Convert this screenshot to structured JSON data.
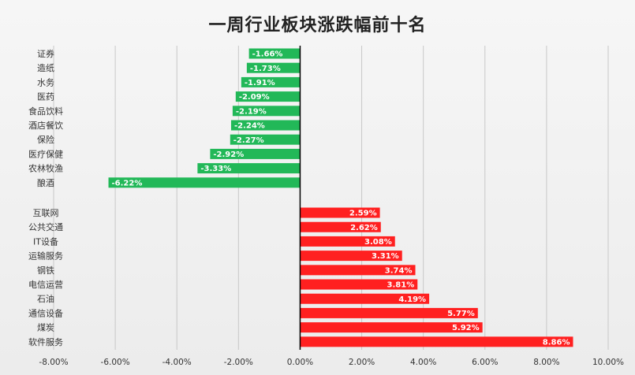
{
  "chart_data": {
    "type": "bar",
    "orientation": "horizontal",
    "title": "一周行业板块涨跌幅前十名",
    "xlim": [
      -8,
      10
    ],
    "x_ticks": [
      "-8.00%",
      "-6.00%",
      "-4.00%",
      "-2.00%",
      "0.00%",
      "2.00%",
      "4.00%",
      "6.00%",
      "8.00%",
      "10.00%"
    ],
    "grid": "vertical",
    "colors": {
      "negative": "#22b858",
      "positive": "#ff2020"
    },
    "groups": [
      {
        "categories": [
          "证券",
          "造纸",
          "水务",
          "医药",
          "食品饮料",
          "酒店餐饮",
          "保险",
          "医疗保健",
          "农林牧渔",
          "酿酒"
        ],
        "values": [
          -1.66,
          -1.73,
          -1.91,
          -2.09,
          -2.19,
          -2.24,
          -2.27,
          -2.92,
          -3.33,
          -6.22
        ],
        "labels": [
          "-1.66%",
          "-1.73%",
          "-1.91%",
          "-2.09%",
          "-2.19%",
          "-2.24%",
          "-2.27%",
          "-2.92%",
          "-3.33%",
          "-6.22%"
        ]
      },
      {
        "categories": [
          "互联网",
          "公共交通",
          "IT设备",
          "运输服务",
          "钢铁",
          "电信运营",
          "石油",
          "通信设备",
          "煤炭",
          "软件服务"
        ],
        "values": [
          2.59,
          2.62,
          3.08,
          3.31,
          3.74,
          3.81,
          4.19,
          5.77,
          5.92,
          8.86
        ],
        "labels": [
          "2.59%",
          "2.62%",
          "3.08%",
          "3.31%",
          "3.74%",
          "3.81%",
          "4.19%",
          "5.77%",
          "5.92%",
          "8.86%"
        ]
      }
    ]
  }
}
